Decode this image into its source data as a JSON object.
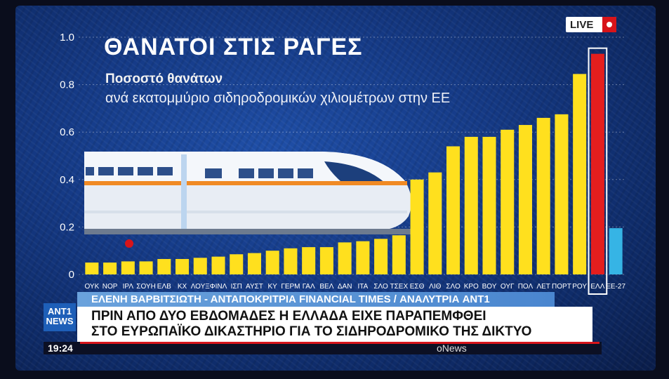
{
  "live_label": "LIVE",
  "chart_data": {
    "type": "bar",
    "title": "ΘΑΝΑΤΟΙ ΣΤΙΣ ΡΑΓΕΣ",
    "subtitle_bold": "Ποσοστό θανάτων",
    "subtitle": "ανά εκατομμύριο σιδηροδρομικών χιλιομέτρων στην ΕΕ",
    "ylim": [
      0,
      1.0
    ],
    "yticks": [
      "0",
      "0.2",
      "0.4",
      "0.6",
      "0.8",
      "1.0"
    ],
    "grid": true,
    "categories": [
      "ΟΥΚ",
      "ΝΟΡ",
      "ΙΡΛ",
      "ΣΟΥΗ",
      "ΕΛΒ",
      "ΚΧ",
      "ΛΟΥΞ",
      "ΦΙΝΛ",
      "ΙΣΠ",
      "ΑΥΣΤ",
      "ΚΥ",
      "ΓΕΡΜ",
      "ΓΑΛ",
      "ΒΕΛ",
      "ΔΑΝ",
      "ΙΤΑ",
      "ΣΛΟ",
      "ΤΣΕΧ",
      "ΕΣΘ",
      "ΛΙΘ",
      "ΣΛΟ",
      "ΚΡΟ",
      "ΒΟΥ",
      "ΟΥΓ",
      "ΠΟΛ",
      "ΛΕΤ",
      "ΠΟΡΤ",
      "ΡΟΥ",
      "ΕΛΛ",
      "ΕΕ-27"
    ],
    "values": [
      0.05,
      0.05,
      0.055,
      0.055,
      0.065,
      0.065,
      0.07,
      0.075,
      0.085,
      0.09,
      0.1,
      0.11,
      0.115,
      0.115,
      0.135,
      0.14,
      0.15,
      0.165,
      0.4,
      0.43,
      0.54,
      0.58,
      0.58,
      0.61,
      0.63,
      0.66,
      0.675,
      0.845,
      0.93,
      0.195
    ],
    "highlight_index": 28,
    "colors": {
      "bar": "#ffe01e",
      "highlight": "#e41e1e",
      "average": "#36b4e5",
      "axis_text": "#ffffff"
    }
  },
  "caption": "ΕΛΕΝΗ ΒΑΡΒΙΤΣΙΩΤΗ - ΑΝΤΑΠΟΚΡΙΤΡΙΑ FINANCIAL TIMES / ΑΝΑΛΥΤΡΙΑ ANT1",
  "headline_line1": "ΠΡΙΝ ΑΠΟ ΔΥΟ ΕΒΔΟΜΑΔΕΣ Η ΕΛΛΑΔΑ ΕΙΧΕ ΠΑΡΑΠΕΜΦΘΕΙ",
  "headline_line2": "ΣΤΟ ΕΥΡΩΠΑΪΚΟ ΔΙΚΑΣΤΗΡΙΟ ΓΙΑ ΤΟ ΣΙΔΗΡΟΔΡΟΜΙΚΟ ΤΗΣ ΔΙΚΤΥΟ",
  "logo_line1": "ANT1",
  "logo_line2": "NEWS",
  "clock": "19:24",
  "brand": "oNews"
}
